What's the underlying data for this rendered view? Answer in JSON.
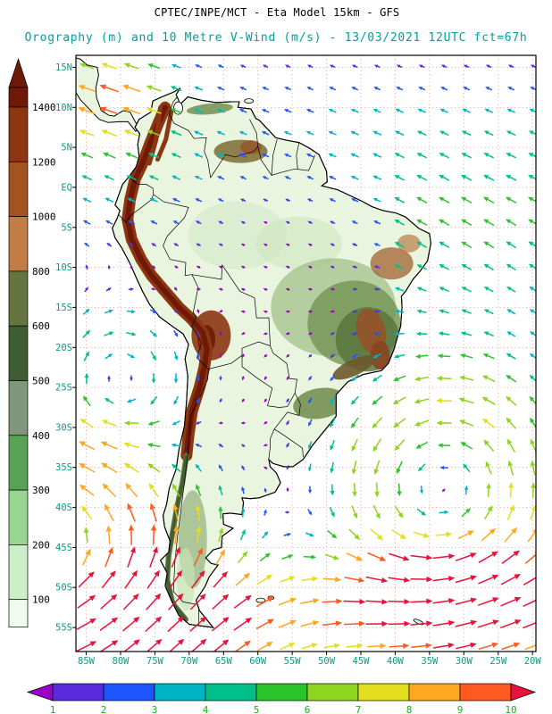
{
  "header": {
    "title": "CPTEC/INPE/MCT -  Eta Model 15km - GFS",
    "subtitle": "Orography (m) and 10 Metre V-Wind (m/s) - 13/03/2021 12UTC fct=67h"
  },
  "orography_scale": {
    "labels": [
      "1400",
      "1200",
      "1000",
      "800",
      "600",
      "500",
      "400",
      "300",
      "200",
      "100"
    ],
    "colors": [
      "#6e1a07",
      "#8c3612",
      "#a2531f",
      "#c07d45",
      "#66743f",
      "#3f5c33",
      "#7f977a",
      "#58a355",
      "#97d593",
      "#cdeec9",
      "#f0faee"
    ]
  },
  "wind_scale": {
    "labels": [
      "1",
      "2",
      "3",
      "4",
      "5",
      "6",
      "7",
      "8",
      "9",
      "10"
    ],
    "colors": [
      "#9b00c8",
      "#5a2bdc",
      "#1f55ff",
      "#00b4c8",
      "#00c08a",
      "#2bc42b",
      "#8fd420",
      "#e3df1f",
      "#ffa81f",
      "#ff5a1f",
      "#e6133c"
    ]
  },
  "axes": {
    "lat_labels": [
      "15N",
      "10N",
      "5N",
      "EQ",
      "5S",
      "10S",
      "15S",
      "20S",
      "25S",
      "30S",
      "35S",
      "40S",
      "45S",
      "50S",
      "55S"
    ],
    "lon_labels": [
      "85W",
      "80W",
      "75W",
      "70W",
      "65W",
      "60W",
      "55W",
      "50W",
      "45W",
      "40W",
      "35W",
      "30W",
      "25W",
      "20W"
    ]
  },
  "colors": {
    "title_text": "#000000",
    "subtitle_text": "#00a0a0",
    "scale_text": "#000000",
    "axis_text": "#0b9b84",
    "wind_label_text": "#17b217",
    "grid": "#d98c7a",
    "ocean": "#ffffff",
    "land_base": "#e9f5df"
  }
}
